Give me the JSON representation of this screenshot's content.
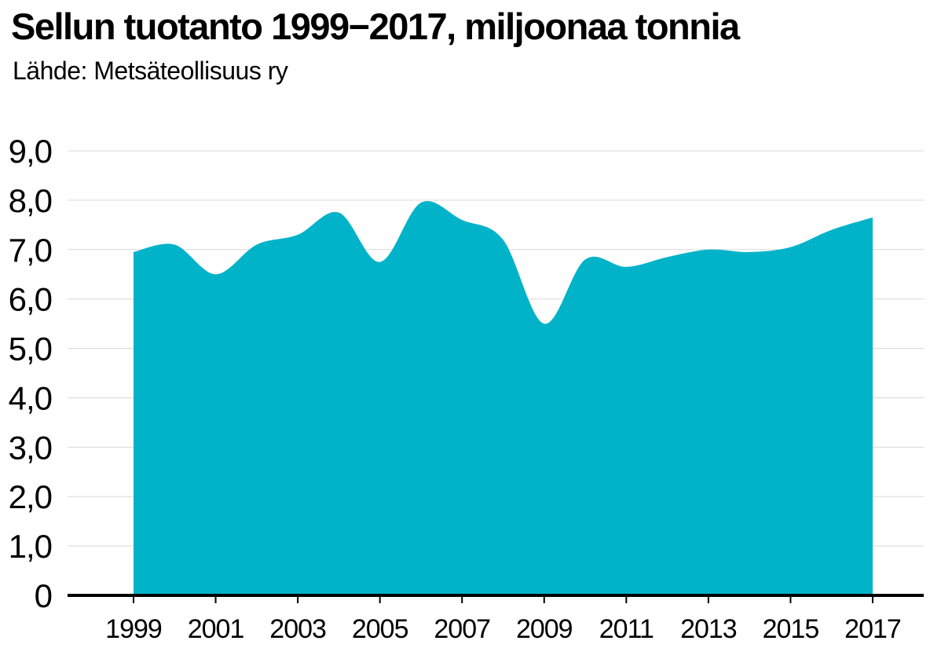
{
  "header": {
    "title": "Sellun tuotanto 1999−2017, miljoonaa tonnia",
    "subtitle": "Lähde: Metsäteollisuus ry"
  },
  "colors": {
    "area": "#00b3c9",
    "grid": "#d9d9d9",
    "axis": "#000000"
  },
  "chart_data": {
    "type": "area",
    "title": "Sellun tuotanto 1999−2017, miljoonaa tonnia",
    "xlabel": "",
    "ylabel": "",
    "x": [
      1999,
      2000,
      2001,
      2002,
      2003,
      2004,
      2005,
      2006,
      2007,
      2008,
      2009,
      2010,
      2011,
      2012,
      2013,
      2014,
      2015,
      2016,
      2017
    ],
    "series": [
      {
        "values": [
          6.95,
          7.1,
          6.5,
          7.1,
          7.3,
          7.75,
          6.75,
          7.95,
          7.6,
          7.2,
          5.5,
          6.8,
          6.65,
          6.85,
          7.0,
          6.95,
          7.05,
          7.4,
          7.65
        ]
      }
    ],
    "ylim": [
      0,
      9
    ],
    "yticks": [
      {
        "value": 0,
        "label": "0"
      },
      {
        "value": 1,
        "label": "1,0"
      },
      {
        "value": 2,
        "label": "2,0"
      },
      {
        "value": 3,
        "label": "3,0"
      },
      {
        "value": 4,
        "label": "4,0"
      },
      {
        "value": 5,
        "label": "5,0"
      },
      {
        "value": 6,
        "label": "6,0"
      },
      {
        "value": 7,
        "label": "7,0"
      },
      {
        "value": 8,
        "label": "8,0"
      },
      {
        "value": 9,
        "label": "9,0"
      }
    ],
    "xticks": [
      {
        "value": 1999,
        "label": "1999"
      },
      {
        "value": 2001,
        "label": "2001"
      },
      {
        "value": 2003,
        "label": "2003"
      },
      {
        "value": 2005,
        "label": "2005"
      },
      {
        "value": 2007,
        "label": "2007"
      },
      {
        "value": 2009,
        "label": "2009"
      },
      {
        "value": 2011,
        "label": "2011"
      },
      {
        "value": 2013,
        "label": "2013"
      },
      {
        "value": 2015,
        "label": "2015"
      },
      {
        "value": 2017,
        "label": "2017"
      }
    ],
    "grid": true,
    "legend": "none"
  }
}
